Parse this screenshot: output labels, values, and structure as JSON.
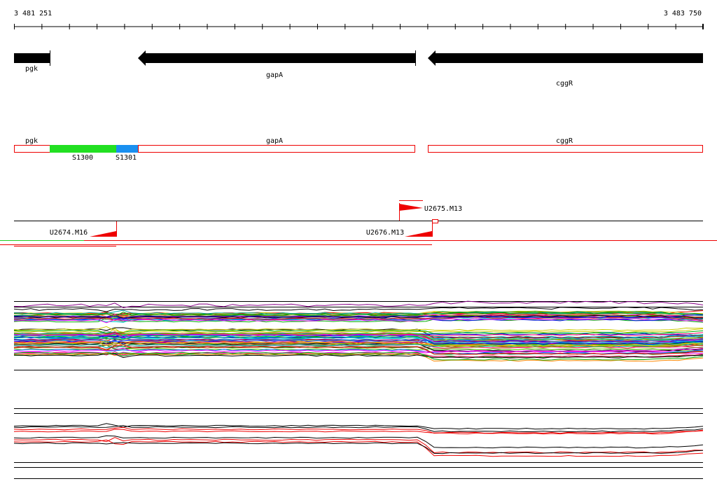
{
  "axis": {
    "start": "3 481 251",
    "end": "3 483 750"
  },
  "genes": [
    {
      "label": "pgk"
    },
    {
      "label": "gapA"
    },
    {
      "label": "cggR"
    }
  ],
  "segments": [
    {
      "label": "pgk"
    },
    {
      "label": "S1300"
    },
    {
      "label": "S1301"
    },
    {
      "label": "gapA"
    },
    {
      "label": "cggR"
    }
  ],
  "sites": [
    {
      "label": "U2674.M16"
    },
    {
      "label": "U2675.M13"
    },
    {
      "label": "U2676.M13"
    }
  ]
}
